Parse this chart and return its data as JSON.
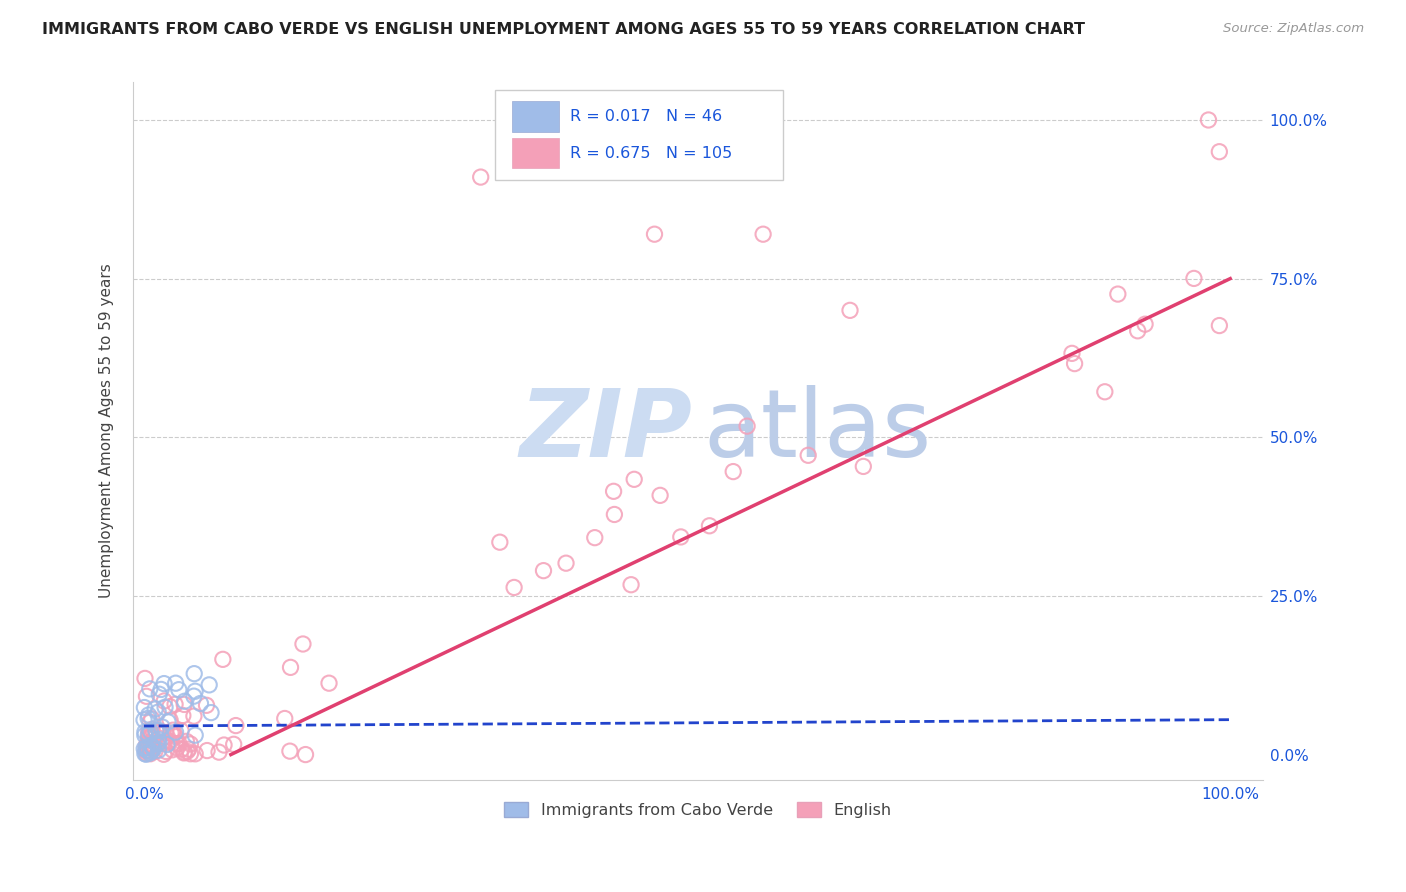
{
  "title": "IMMIGRANTS FROM CABO VERDE VS ENGLISH UNEMPLOYMENT AMONG AGES 55 TO 59 YEARS CORRELATION CHART",
  "source": "Source: ZipAtlas.com",
  "ylabel": "Unemployment Among Ages 55 to 59 years",
  "legend_label1": "Immigrants from Cabo Verde",
  "legend_label2": "English",
  "r1": "0.017",
  "n1": "46",
  "r2": "0.675",
  "n2": "105",
  "color_blue": "#a0bce8",
  "color_pink": "#f4a0b8",
  "color_blue_line": "#2244cc",
  "color_pink_line": "#e04070",
  "color_text_blue": "#1a56db",
  "grid_color": "#cccccc",
  "title_color": "#222222",
  "source_color": "#999999",
  "label_color": "#444444",
  "watermark_zip_color": "#cddcf0",
  "watermark_atlas_color": "#b8ccec"
}
